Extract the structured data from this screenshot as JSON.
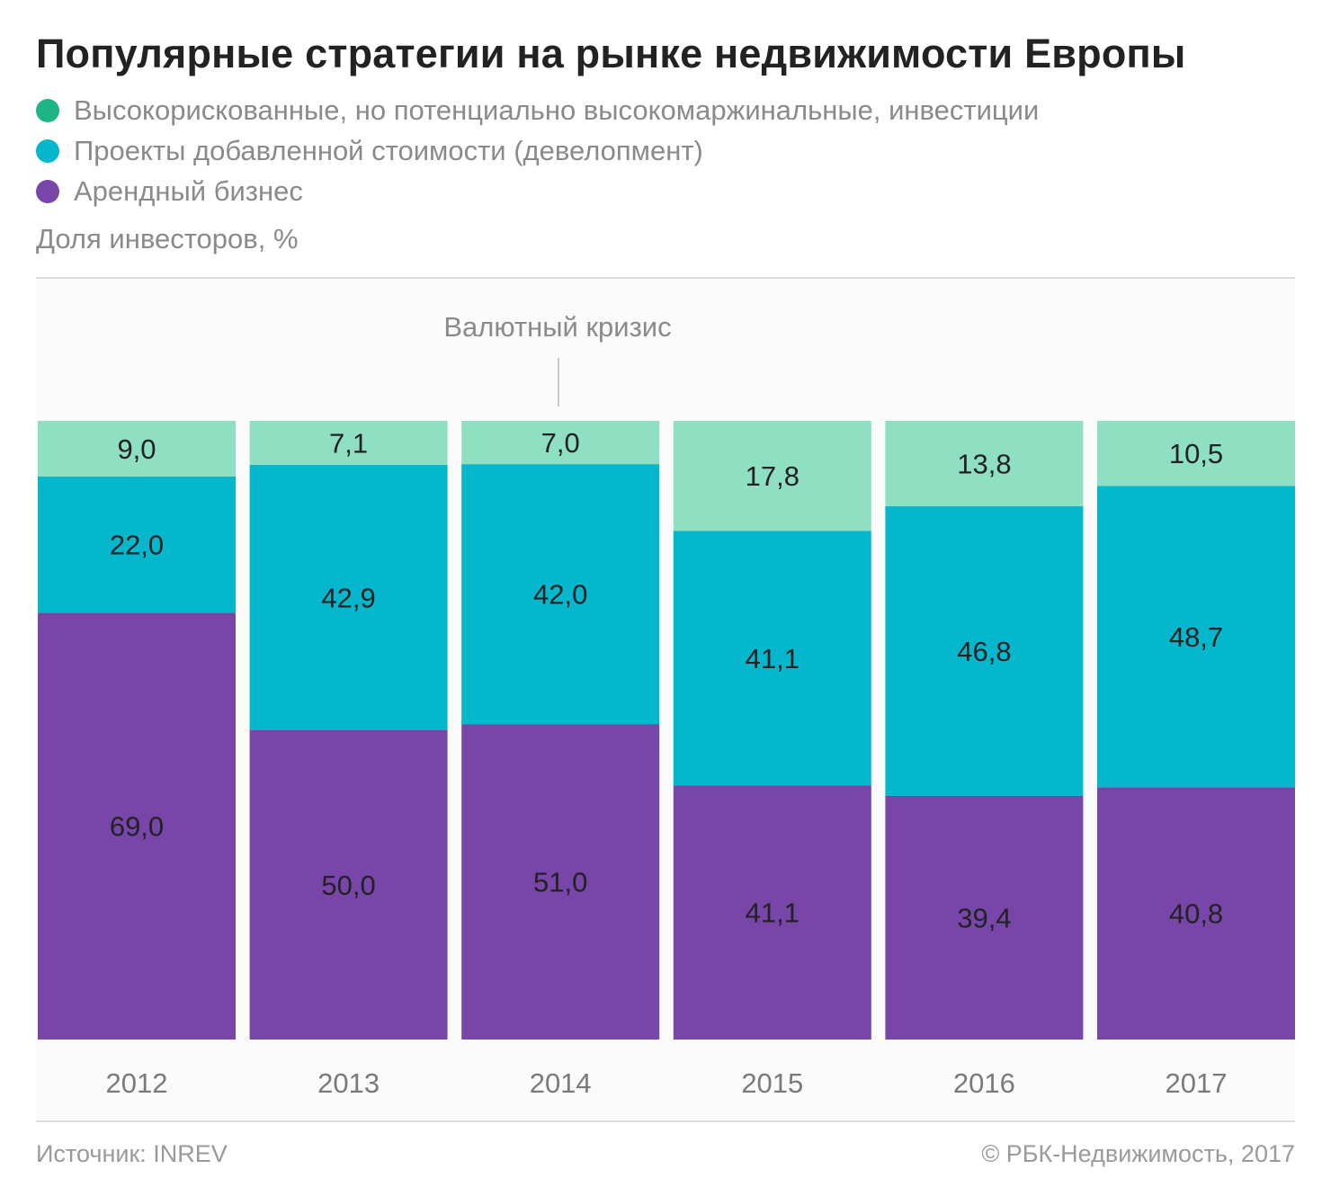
{
  "title": "Популярные стратегии на рынке недвижимости Европы",
  "legend": [
    {
      "label": "Высокорискованные, но потенциально высокомаржинальные, инвестиции",
      "color": "#1db584"
    },
    {
      "label": "Проекты добавленной стоимости (девелопмент)",
      "color": "#05b7cc"
    },
    {
      "label": "Арендный бизнес",
      "color": "#7846a8"
    }
  ],
  "units": "Доля инвесторов, %",
  "annotation": "Валютный кризис",
  "footer": {
    "source": "Источник: INREV",
    "copyright": "© РБК-Недвижимость, 2017"
  },
  "chart_data": {
    "type": "bar",
    "stacked": true,
    "categories": [
      "2012",
      "2013",
      "2014",
      "2015",
      "2016",
      "2017"
    ],
    "series": [
      {
        "name": "Арендный бизнес",
        "color": "#7846a8",
        "values": [
          69.0,
          50.0,
          51.0,
          41.1,
          39.4,
          40.8
        ],
        "labels": [
          "69,0",
          "50,0",
          "51,0",
          "41,1",
          "39,4",
          "40,8"
        ]
      },
      {
        "name": "Проекты добавленной стоимости (девелопмент)",
        "color": "#05b7cc",
        "values": [
          22.0,
          42.9,
          42.0,
          41.1,
          46.8,
          48.7
        ],
        "labels": [
          "22,0",
          "42,9",
          "42,0",
          "41,1",
          "46,8",
          "48,7"
        ]
      },
      {
        "name": "Высокорискованные, но потенциально высокомаржинальные, инвестиции",
        "color": "#8fdfc3",
        "values": [
          9.0,
          7.1,
          7.0,
          17.8,
          13.8,
          10.5
        ],
        "labels": [
          "9,0",
          "7,1",
          "7,0",
          "17,8",
          "13,8",
          "10,5"
        ]
      }
    ],
    "ylabel": "Доля инвесторов, %",
    "ylim": [
      0,
      100
    ],
    "annotations": [
      {
        "category": "2014",
        "text": "Валютный кризис"
      }
    ]
  }
}
